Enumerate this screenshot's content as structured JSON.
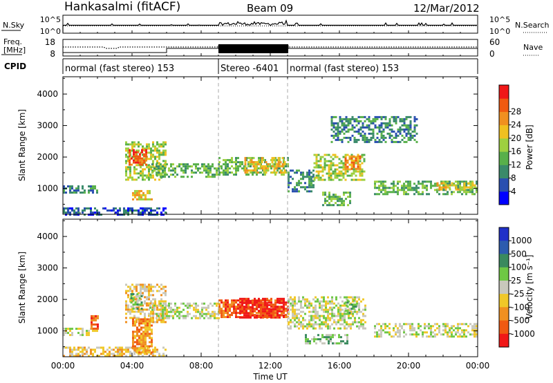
{
  "header": {
    "station": "Hankasalmi (fitACF)",
    "beam": "Beam 09",
    "date": "12/Mar/2012"
  },
  "noise_panel": {
    "left_label": "N.Sky",
    "right_label": "N.Search",
    "left_ticks": [
      "10^5",
      "10^0"
    ],
    "right_ticks": [
      "10^5",
      "10^0"
    ]
  },
  "freq_panel": {
    "left_label_line1": "Freq.",
    "left_label_line2": "[MHz]",
    "right_label": "Nave",
    "left_ticks": [
      "18",
      "8"
    ],
    "right_ticks": [
      "60",
      "0"
    ],
    "cpid_label": "CPID"
  },
  "cpid_segments": [
    {
      "start_hour": 0,
      "end_hour": 9,
      "label": "normal (fast stereo) 153"
    },
    {
      "start_hour": 9,
      "end_hour": 13,
      "label": "Stereo -6401"
    },
    {
      "start_hour": 13,
      "end_hour": 24,
      "label": "normal (fast stereo) 153"
    }
  ],
  "chart_data": [
    {
      "type": "heatmap",
      "name": "power",
      "ylabel": "Slant Range [km]",
      "ylim": [
        180,
        4550
      ],
      "yticks": [
        "1000",
        "2000",
        "3000",
        "4000"
      ],
      "colorbar_label": "Power [dB]",
      "colorbar_ticks": [
        "4",
        "8",
        "12",
        "16",
        "20",
        "24",
        "28"
      ],
      "colorbar_colors": [
        "#0000ff",
        "#2a4fb0",
        "#3a8a6a",
        "#58b04a",
        "#9ed040",
        "#f0c020",
        "#f09020",
        "#f05a10",
        "#f01818"
      ],
      "regions": [
        {
          "t": [
            0.0,
            2.0
          ],
          "r": [
            850,
            1100
          ],
          "level": 2
        },
        {
          "t": [
            0.0,
            6.0
          ],
          "r": [
            200,
            400
          ],
          "level": 1
        },
        {
          "t": [
            3.6,
            6.0
          ],
          "r": [
            1300,
            2500
          ],
          "level": 4
        },
        {
          "t": [
            3.8,
            4.8
          ],
          "r": [
            1750,
            2250
          ],
          "level": 7
        },
        {
          "t": [
            4.0,
            5.2
          ],
          "r": [
            650,
            950
          ],
          "level": 5
        },
        {
          "t": [
            5.0,
            9.0
          ],
          "r": [
            1400,
            1800
          ],
          "level": 3
        },
        {
          "t": [
            9.0,
            13.0
          ],
          "r": [
            1450,
            2000
          ],
          "level": 3
        },
        {
          "t": [
            10.5,
            12.8
          ],
          "r": [
            1500,
            2000
          ],
          "level": 5
        },
        {
          "t": [
            13.0,
            14.5
          ],
          "r": [
            900,
            1600
          ],
          "level": 2
        },
        {
          "t": [
            14.5,
            17.5
          ],
          "r": [
            1250,
            2100
          ],
          "level": 4
        },
        {
          "t": [
            16.3,
            17.2
          ],
          "r": [
            1650,
            2050
          ],
          "level": 6
        },
        {
          "t": [
            15.0,
            16.6
          ],
          "r": [
            500,
            900
          ],
          "level": 3
        },
        {
          "t": [
            18.0,
            24.0
          ],
          "r": [
            800,
            1250
          ],
          "level": 3
        },
        {
          "t": [
            21.5,
            23.8
          ],
          "r": [
            950,
            1200
          ],
          "level": 5
        },
        {
          "t": [
            15.5,
            20.5
          ],
          "r": [
            2500,
            3300
          ],
          "level": 2
        }
      ]
    },
    {
      "type": "heatmap",
      "name": "velocity",
      "ylabel": "Slant Range [km]",
      "ylim": [
        180,
        4550
      ],
      "yticks": [
        "1000",
        "2000",
        "3000",
        "4000"
      ],
      "xlabel": "Time UT",
      "xticks": [
        "00:00",
        "04:00",
        "08:00",
        "12:00",
        "16:00",
        "20:00",
        "00:00"
      ],
      "colorbar_label": "Velocity [m s⁻¹]",
      "colorbar_ticks": [
        "1000",
        "500",
        "100",
        "25",
        "-25",
        "-100",
        "-500",
        "-1000"
      ],
      "colorbar_colors": [
        "#2030c8",
        "#2d5cae",
        "#3a8a5e",
        "#6ec844",
        "#c8c8bc",
        "#f0c828",
        "#f09020",
        "#f05a12",
        "#f01818"
      ],
      "regions": [
        {
          "t": [
            0.0,
            2.0
          ],
          "r": [
            850,
            1100
          ],
          "level": 4
        },
        {
          "t": [
            0.0,
            6.0
          ],
          "r": [
            200,
            500
          ],
          "level": 5
        },
        {
          "t": [
            1.6,
            2.0
          ],
          "r": [
            1100,
            1500
          ],
          "level": 7
        },
        {
          "t": [
            3.6,
            6.0
          ],
          "r": [
            1300,
            2500
          ],
          "level": 5
        },
        {
          "t": [
            3.9,
            4.6
          ],
          "r": [
            1700,
            2200
          ],
          "level": 3
        },
        {
          "t": [
            4.0,
            5.2
          ],
          "r": [
            300,
            1400
          ],
          "level": 6
        },
        {
          "t": [
            5.0,
            9.0
          ],
          "r": [
            1400,
            1900
          ],
          "level": 4
        },
        {
          "t": [
            9.0,
            13.0
          ],
          "r": [
            1450,
            2000
          ],
          "level": 7
        },
        {
          "t": [
            10.2,
            12.8
          ],
          "r": [
            1450,
            2050
          ],
          "level": 8
        },
        {
          "t": [
            13.0,
            17.5
          ],
          "r": [
            1100,
            2100
          ],
          "level": 4
        },
        {
          "t": [
            16.3,
            17.0
          ],
          "r": [
            1600,
            2000
          ],
          "level": 3
        },
        {
          "t": [
            14.0,
            16.5
          ],
          "r": [
            600,
            900
          ],
          "level": 3
        },
        {
          "t": [
            18.0,
            24.0
          ],
          "r": [
            800,
            1250
          ],
          "level": 4
        }
      ]
    }
  ]
}
